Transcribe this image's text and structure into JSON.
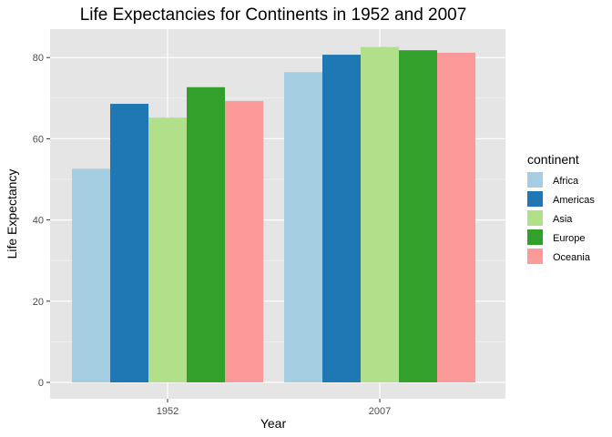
{
  "chart_data": {
    "type": "bar",
    "title": "Life Expectancies for Continents in 1952 and 2007",
    "xlabel": "Year",
    "ylabel": "Life Expectancy",
    "categories": [
      "1952",
      "2007"
    ],
    "ylim": [
      0,
      87
    ],
    "yticks": [
      0,
      20,
      40,
      60,
      80
    ],
    "grid": true,
    "legend": {
      "title": "continent",
      "position": "right"
    },
    "series": [
      {
        "name": "Africa",
        "color": "#a6cee3",
        "values": [
          52.6,
          76.4
        ]
      },
      {
        "name": "Americas",
        "color": "#1f78b4",
        "values": [
          68.6,
          80.7
        ]
      },
      {
        "name": "Asia",
        "color": "#b2df8a",
        "values": [
          65.2,
          82.6
        ]
      },
      {
        "name": "Europe",
        "color": "#33a02c",
        "values": [
          72.7,
          81.8
        ]
      },
      {
        "name": "Oceania",
        "color": "#fb9a99",
        "values": [
          69.3,
          81.2
        ]
      }
    ]
  },
  "theme": {
    "panel_background": "#e5e5e5",
    "grid_major": "#ffffff",
    "grid_minor": "#f2f2f2",
    "text_color": "#000000",
    "tick_color": "#4d4d4d"
  }
}
